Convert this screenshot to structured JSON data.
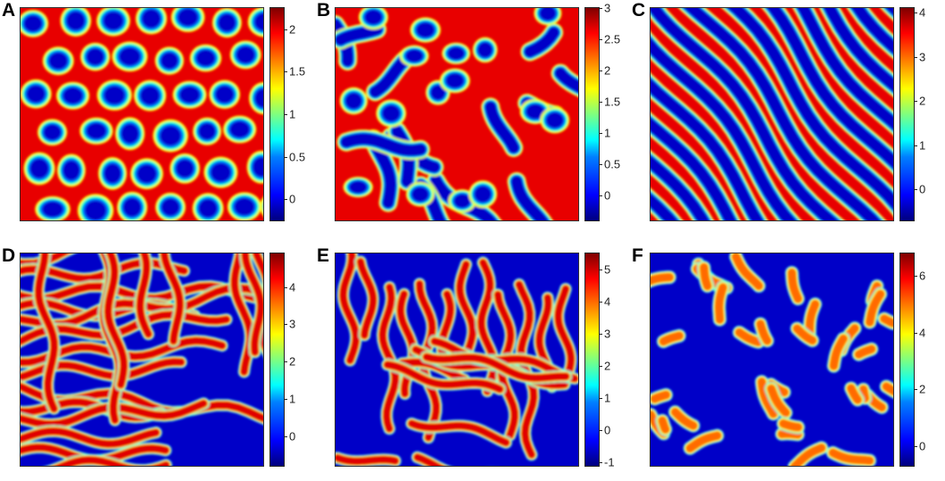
{
  "panels": [
    {
      "letter": "A",
      "kind": "spots",
      "colorbar": {
        "min": -0.25,
        "max": 2.25,
        "ticks": [
          "2",
          "1.5",
          "1",
          "0.5",
          "0"
        ],
        "values": [
          2,
          1.5,
          1,
          0.5,
          0
        ]
      }
    },
    {
      "letter": "B",
      "kind": "mixed",
      "colorbar": {
        "min": -0.4,
        "max": 3.0,
        "ticks": [
          "3",
          "2.5",
          "2",
          "1.5",
          "1",
          "0.5",
          "0"
        ],
        "values": [
          3,
          2.5,
          2,
          1.5,
          1,
          0.5,
          0
        ]
      }
    },
    {
      "letter": "C",
      "kind": "stripes-diagonal",
      "colorbar": {
        "min": -0.7,
        "max": 4.1,
        "ticks": [
          "4",
          "3",
          "2",
          "1",
          "0"
        ],
        "values": [
          4,
          3,
          2,
          1,
          0
        ]
      }
    },
    {
      "letter": "D",
      "kind": "labyrinth",
      "colorbar": {
        "min": -0.8,
        "max": 4.9,
        "ticks": [
          "4",
          "3",
          "2",
          "1",
          "0"
        ],
        "values": [
          4,
          3,
          2,
          1,
          0
        ]
      }
    },
    {
      "letter": "E",
      "kind": "labyrinth-spots",
      "colorbar": {
        "min": -1.1,
        "max": 5.5,
        "ticks": [
          "5",
          "4",
          "3",
          "2",
          "1",
          "0",
          "-1"
        ],
        "values": [
          5,
          4,
          3,
          2,
          1,
          0,
          -1
        ]
      }
    },
    {
      "letter": "F",
      "kind": "short-stripes",
      "colorbar": {
        "min": -0.7,
        "max": 6.8,
        "ticks": [
          "6",
          "4",
          "2",
          "0"
        ],
        "values": [
          6,
          4,
          2,
          0
        ]
      }
    }
  ]
}
